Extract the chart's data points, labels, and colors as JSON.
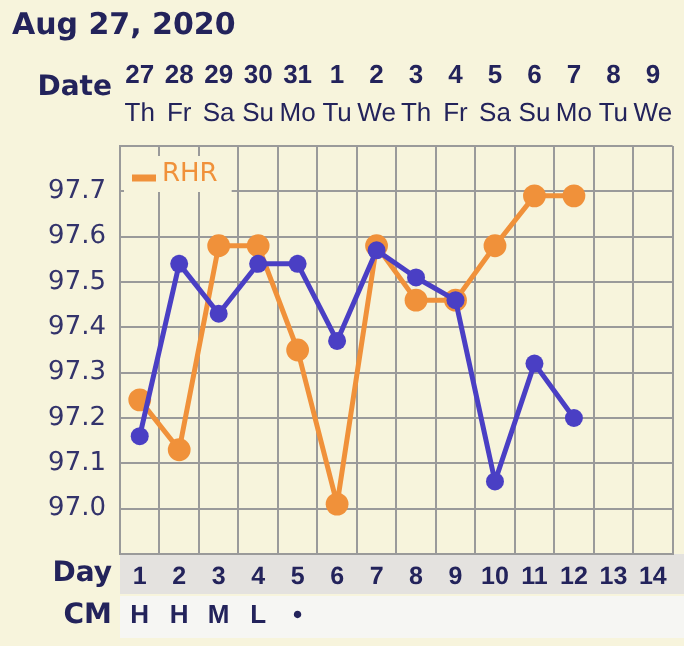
{
  "chart_data": {
    "type": "line",
    "title": "Aug 27, 2020",
    "xlabel": "Day",
    "x": [
      1,
      2,
      3,
      4,
      5,
      6,
      7,
      8,
      9,
      10,
      11,
      12
    ],
    "xlim": [
      0.5,
      14.5
    ],
    "xticks": [
      {
        "value": 0.5,
        "label": null
      },
      1,
      {
        "value": 1.5,
        "label": null
      },
      2,
      {
        "value": 2.5,
        "label": null
      },
      3,
      {
        "value": 3.5,
        "label": null
      },
      4,
      {
        "value": 4.5,
        "label": null
      },
      5,
      {
        "value": 5.5,
        "label": null
      },
      6,
      {
        "value": 6.5,
        "label": null
      },
      7,
      {
        "value": 7.5,
        "label": null
      },
      8,
      {
        "value": 8.5,
        "label": null
      },
      9,
      {
        "value": 9.5,
        "label": null
      },
      10,
      {
        "value": 10.5,
        "label": null
      },
      11,
      {
        "value": 11.5,
        "label": null
      },
      12,
      {
        "value": 12.5,
        "label": null
      },
      13,
      {
        "value": 13.5,
        "label": null
      },
      14,
      {
        "value": 14.5,
        "label": null
      }
    ],
    "series": [
      {
        "name": "RHR",
        "color": "#f0913a",
        "values": [
          97.24,
          97.13,
          97.58,
          97.58,
          97.35,
          97.01,
          97.58,
          97.46,
          97.46,
          97.58,
          97.69,
          97.69
        ]
      },
      {
        "color": "#4a3fc4",
        "values": [
          97.16,
          97.54,
          97.43,
          97.54,
          97.54,
          97.37,
          97.57,
          97.51,
          97.46,
          97.06,
          97.32,
          97.2
        ]
      }
    ],
    "ylim": [
      96.9,
      97.8
    ],
    "yticks": [
      {
        "value": 96.9,
        "label": null
      },
      {
        "value": 97,
        "label": "97.0"
      },
      97.1,
      97.2,
      97.3,
      97.4,
      97.5,
      97.6,
      97.7,
      {
        "value": 97.8,
        "label": null
      }
    ],
    "grid": true,
    "legend": "top left",
    "marker": "circle",
    "line_style": "solid",
    "annotations": [
      "Date",
      "27",
      "28",
      "29",
      "30",
      "31",
      "1",
      "2",
      "3",
      "4",
      "5",
      "6",
      "7",
      "8",
      "9",
      "Th",
      "Fr",
      "Sa",
      "Su",
      "Mo",
      "Tu",
      "We",
      "Th",
      "Fr",
      "Sa",
      "Su",
      "Mo",
      "Tu",
      "We",
      "CM",
      "H",
      "H",
      "M",
      "L",
      "•"
    ]
  }
}
